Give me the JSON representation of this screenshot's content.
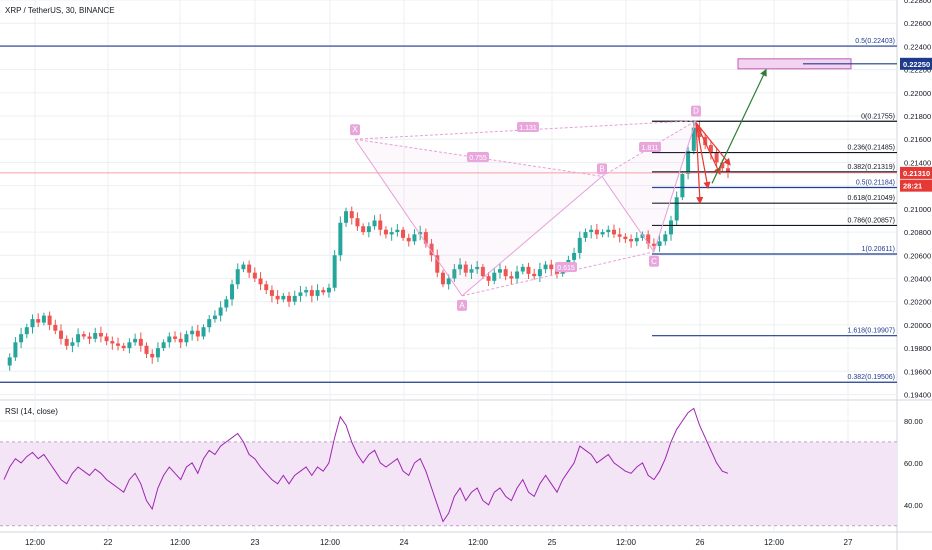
{
  "header": {
    "title": "XRP / TetherUS, 30, BINANCE"
  },
  "rsi_panel": {
    "label": "RSI (14, close)"
  },
  "colors": {
    "up": "#26a69a",
    "down": "#ef5350",
    "harmonic": "#e6a0d8",
    "harmonic_label_bg": "#e8a6dc",
    "fib_line": "#131722",
    "blue_line": "#1f3c8f",
    "rsi_line": "#9c27b0",
    "rsi_band": "#f3e5f5",
    "arrow_red": "#e53935",
    "arrow_green": "#2e7d32",
    "price_tag": "#1e3a8a",
    "grid": "#eceff3"
  },
  "chart_data": [
    {
      "type": "candlestick",
      "title": "XRP / TetherUS, 30, BINANCE",
      "ylim": [
        0.1937,
        0.228
      ],
      "y_ticks": [
        "0.22800",
        "0.22600",
        "0.22400",
        "0.22200",
        "0.22000",
        "0.21800",
        "0.21600",
        "0.21400",
        "0.21200",
        "0.21000",
        "0.20800",
        "0.20600",
        "0.20400",
        "0.20200",
        "0.20000",
        "0.19800",
        "0.19600",
        "0.19400"
      ],
      "x_ticks": [
        "12:00",
        "22",
        "12:00",
        "23",
        "12:00",
        "24",
        "12:00",
        "25",
        "12:00",
        "26",
        "12:00",
        "27"
      ],
      "grid": true,
      "price_tags": [
        {
          "label": "0.22250",
          "value": 0.2225
        },
        {
          "label": "0.21310",
          "value": 0.2131
        },
        {
          "label": "28:21",
          "value": 0.212
        }
      ],
      "harmonic_pattern": {
        "points": [
          {
            "label": "X",
            "value": 0.216
          },
          {
            "label": "A",
            "value": 0.2025
          },
          {
            "label": "B",
            "value": 0.2128
          },
          {
            "label": "C",
            "value": 0.2063
          },
          {
            "label": "D",
            "value": 0.2176
          }
        ],
        "ratios": [
          "1.131",
          "0.755",
          "0.615",
          "1.811"
        ]
      },
      "fibonacci_levels": [
        {
          "label": "0.5(0.22403)",
          "value": 0.22403
        },
        {
          "label": "0(0.21755)",
          "value": 0.21755
        },
        {
          "label": "0.236(0.21485)",
          "value": 0.21485
        },
        {
          "label": "0.382(0.21319)",
          "value": 0.21319
        },
        {
          "label": "0.5(0.21184)",
          "value": 0.21184
        },
        {
          "label": "0.618(0.21049)",
          "value": 0.21049
        },
        {
          "label": "0.786(0.20857)",
          "value": 0.20857
        },
        {
          "label": "1(0.20611)",
          "value": 0.20611
        },
        {
          "label": "1.618(0.19907)",
          "value": 0.19907
        },
        {
          "label": "0.382(0.19506)",
          "value": 0.19506
        }
      ],
      "price_path": [
        0.1965,
        0.1972,
        0.1985,
        0.1992,
        0.1998,
        0.2005,
        0.2002,
        0.2008,
        0.2,
        0.1995,
        0.1988,
        0.1982,
        0.1985,
        0.1992,
        0.199,
        0.1988,
        0.1993,
        0.199,
        0.1986,
        0.1984,
        0.1982,
        0.198,
        0.1985,
        0.1988,
        0.1982,
        0.1975,
        0.1972,
        0.198,
        0.1985,
        0.199,
        0.1988,
        0.1985,
        0.1992,
        0.1995,
        0.199,
        0.1998,
        0.2005,
        0.2008,
        0.2015,
        0.2022,
        0.2035,
        0.2048,
        0.2052,
        0.2045,
        0.204,
        0.2035,
        0.203,
        0.2025,
        0.2022,
        0.2025,
        0.202,
        0.2025,
        0.2028,
        0.203,
        0.2025,
        0.203,
        0.2028,
        0.2032,
        0.206,
        0.2088,
        0.2098,
        0.2092,
        0.2085,
        0.208,
        0.2085,
        0.209,
        0.2082,
        0.2078,
        0.208,
        0.2082,
        0.2075,
        0.2072,
        0.2078,
        0.208,
        0.207,
        0.206,
        0.2045,
        0.2035,
        0.204,
        0.2048,
        0.2052,
        0.2045,
        0.2048,
        0.205,
        0.2042,
        0.2038,
        0.2045,
        0.2048,
        0.2042,
        0.204,
        0.2046,
        0.205,
        0.2044,
        0.2042,
        0.2048,
        0.2052,
        0.2048,
        0.2044,
        0.205,
        0.2056,
        0.2062,
        0.2075,
        0.208,
        0.2082,
        0.2078,
        0.208,
        0.2082,
        0.2078,
        0.2076,
        0.2074,
        0.2072,
        0.2075,
        0.2078,
        0.207,
        0.2068,
        0.2072,
        0.2078,
        0.209,
        0.211,
        0.213,
        0.215,
        0.217,
        0.2162,
        0.2155,
        0.2148,
        0.214,
        0.2135,
        0.2131
      ],
      "rsi": {
        "label": "RSI (14, close)",
        "ylim": [
          27,
          90
        ],
        "y_ticks": [
          "80.00",
          "60.00",
          "40.00"
        ],
        "band": [
          30,
          70
        ],
        "values": [
          52,
          58,
          62,
          60,
          63,
          65,
          62,
          64,
          60,
          56,
          52,
          50,
          55,
          58,
          56,
          54,
          57,
          55,
          52,
          50,
          48,
          46,
          52,
          55,
          50,
          42,
          38,
          48,
          54,
          58,
          55,
          52,
          58,
          60,
          55,
          62,
          66,
          64,
          68,
          70,
          72,
          74,
          70,
          64,
          62,
          58,
          55,
          52,
          50,
          54,
          50,
          54,
          56,
          58,
          54,
          58,
          56,
          60,
          72,
          82,
          78,
          70,
          64,
          60,
          64,
          66,
          60,
          58,
          60,
          62,
          56,
          54,
          60,
          62,
          56,
          48,
          40,
          32,
          36,
          44,
          48,
          42,
          46,
          48,
          42,
          40,
          46,
          48,
          44,
          42,
          48,
          52,
          46,
          44,
          50,
          54,
          50,
          46,
          52,
          56,
          60,
          68,
          66,
          64,
          60,
          62,
          64,
          60,
          58,
          56,
          55,
          58,
          60,
          54,
          52,
          56,
          62,
          70,
          76,
          80,
          84,
          86,
          78,
          72,
          66,
          60,
          56,
          55
        ]
      }
    }
  ]
}
